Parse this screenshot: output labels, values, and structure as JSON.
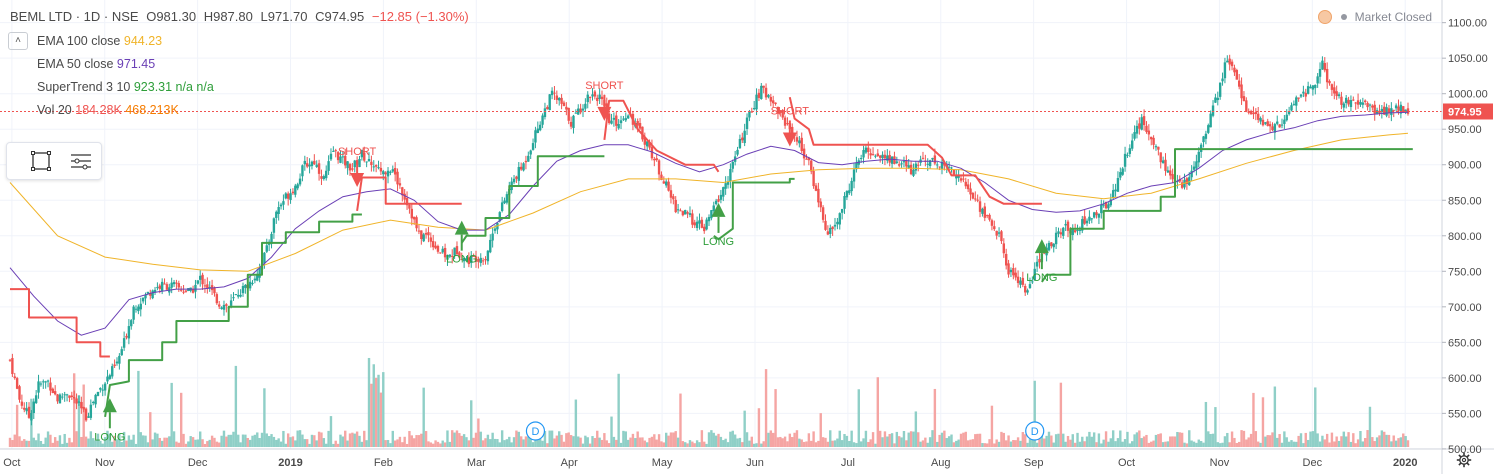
{
  "header": {
    "symbol": "BEML LTD · 1D · NSE",
    "open": "O981.30",
    "high": "H987.80",
    "low": "L971.70",
    "close": "C974.95",
    "change": "−12.85 (−1.30%)"
  },
  "indicators": [
    {
      "name": "EMA 100 close",
      "value": "944.23",
      "color": "#f0b429"
    },
    {
      "name": "EMA 50 close",
      "value": "971.45",
      "color": "#6a3fb5"
    },
    {
      "name": "SuperTrend 3 10",
      "value": "923.31 n/a n/a",
      "color": "#2e9e3a"
    },
    {
      "name": "Vol 20",
      "value": "184.28K",
      "value2": "468.213K",
      "color": "#ef5350",
      "color2": "#f57c00"
    }
  ],
  "market_status": "Market Closed",
  "price_tag": "974.95",
  "icons": [
    "collapse-chevron-icon",
    "rectangle-tool-icon",
    "format-lines-icon",
    "clock-icon",
    "settings-gear-icon"
  ],
  "colors": {
    "up": "#26a69a",
    "down": "#ef5350",
    "vol_up": "#8fcfc7",
    "vol_down": "#f5a5a3",
    "supertrend_up": "#43a047",
    "supertrend_down": "#ef5350"
  },
  "chart_data": {
    "type": "candlestick",
    "ylim": [
      490,
      1115
    ],
    "yticks": [
      "1100.00",
      "1050.00",
      "1000.00",
      "950.00",
      "900.00",
      "850.00",
      "800.00",
      "750.00",
      "700.00",
      "650.00",
      "600.00",
      "550.00",
      "500.00"
    ],
    "xticks": [
      "Oct",
      "Nov",
      "Dec",
      "2019",
      "Feb",
      "Mar",
      "Apr",
      "May",
      "Jun",
      "Jul",
      "Aug",
      "Sep",
      "Oct",
      "Nov",
      "Dec",
      "2020"
    ],
    "close_path": [
      [
        0,
        625
      ],
      [
        4,
        570
      ],
      [
        8,
        545
      ],
      [
        12,
        590
      ],
      [
        16,
        595
      ],
      [
        20,
        570
      ],
      [
        24,
        580
      ],
      [
        28,
        565
      ],
      [
        32,
        545
      ],
      [
        36,
        575
      ],
      [
        40,
        595
      ],
      [
        45,
        620
      ],
      [
        48,
        650
      ],
      [
        52,
        700
      ],
      [
        56,
        712
      ],
      [
        60,
        725
      ],
      [
        64,
        730
      ],
      [
        68,
        730
      ],
      [
        72,
        725
      ],
      [
        76,
        720
      ],
      [
        80,
        740
      ],
      [
        84,
        725
      ],
      [
        88,
        705
      ],
      [
        92,
        700
      ],
      [
        96,
        720
      ],
      [
        100,
        730
      ],
      [
        104,
        748
      ],
      [
        108,
        780
      ],
      [
        112,
        835
      ],
      [
        116,
        855
      ],
      [
        120,
        870
      ],
      [
        124,
        900
      ],
      [
        128,
        905
      ],
      [
        132,
        880
      ],
      [
        136,
        920
      ],
      [
        140,
        905
      ],
      [
        144,
        895
      ],
      [
        148,
        915
      ],
      [
        152,
        900
      ],
      [
        156,
        890
      ],
      [
        160,
        895
      ],
      [
        164,
        870
      ],
      [
        168,
        840
      ],
      [
        172,
        800
      ],
      [
        176,
        800
      ],
      [
        180,
        780
      ],
      [
        184,
        770
      ],
      [
        188,
        780
      ],
      [
        192,
        765
      ],
      [
        196,
        770
      ],
      [
        200,
        770
      ],
      [
        204,
        815
      ],
      [
        208,
        850
      ],
      [
        212,
        880
      ],
      [
        216,
        900
      ],
      [
        220,
        935
      ],
      [
        224,
        970
      ],
      [
        228,
        1000
      ],
      [
        232,
        985
      ],
      [
        236,
        960
      ],
      [
        240,
        980
      ],
      [
        244,
        1000
      ],
      [
        248,
        995
      ],
      [
        252,
        960
      ],
      [
        256,
        960
      ],
      [
        260,
        975
      ],
      [
        264,
        950
      ],
      [
        268,
        930
      ],
      [
        272,
        900
      ],
      [
        276,
        870
      ],
      [
        280,
        840
      ],
      [
        284,
        830
      ],
      [
        288,
        820
      ],
      [
        292,
        810
      ],
      [
        296,
        840
      ],
      [
        300,
        865
      ],
      [
        304,
        900
      ],
      [
        308,
        940
      ],
      [
        312,
        980
      ],
      [
        316,
        1005
      ],
      [
        320,
        995
      ],
      [
        324,
        970
      ],
      [
        328,
        950
      ],
      [
        332,
        930
      ],
      [
        336,
        900
      ],
      [
        340,
        850
      ],
      [
        344,
        800
      ],
      [
        348,
        820
      ],
      [
        352,
        860
      ],
      [
        356,
        900
      ],
      [
        360,
        920
      ],
      [
        364,
        915
      ],
      [
        368,
        910
      ],
      [
        372,
        905
      ],
      [
        376,
        900
      ],
      [
        380,
        890
      ],
      [
        384,
        910
      ],
      [
        388,
        905
      ],
      [
        392,
        900
      ],
      [
        396,
        895
      ],
      [
        400,
        880
      ],
      [
        404,
        860
      ],
      [
        408,
        840
      ],
      [
        412,
        820
      ],
      [
        416,
        800
      ],
      [
        420,
        750
      ],
      [
        424,
        740
      ],
      [
        428,
        720
      ],
      [
        432,
        760
      ],
      [
        436,
        780
      ],
      [
        440,
        800
      ],
      [
        444,
        810
      ],
      [
        448,
        810
      ],
      [
        452,
        820
      ],
      [
        456,
        830
      ],
      [
        460,
        840
      ],
      [
        464,
        860
      ],
      [
        468,
        900
      ],
      [
        472,
        940
      ],
      [
        476,
        960
      ],
      [
        480,
        940
      ],
      [
        484,
        910
      ],
      [
        488,
        880
      ],
      [
        492,
        870
      ],
      [
        496,
        880
      ],
      [
        500,
        920
      ],
      [
        504,
        960
      ],
      [
        508,
        1000
      ],
      [
        512,
        1050
      ],
      [
        516,
        1020
      ],
      [
        520,
        980
      ],
      [
        524,
        965
      ],
      [
        528,
        955
      ],
      [
        532,
        955
      ],
      [
        536,
        960
      ],
      [
        540,
        990
      ],
      [
        544,
        1000
      ],
      [
        548,
        1010
      ],
      [
        552,
        1040
      ],
      [
        556,
        1000
      ],
      [
        560,
        990
      ],
      [
        564,
        985
      ],
      [
        568,
        985
      ],
      [
        572,
        980
      ],
      [
        576,
        975
      ],
      [
        580,
        975
      ],
      [
        584,
        980
      ],
      [
        588,
        974.95
      ]
    ],
    "ema50_path": [
      [
        0,
        755
      ],
      [
        10,
        715
      ],
      [
        20,
        680
      ],
      [
        30,
        660
      ],
      [
        40,
        670
      ],
      [
        50,
        710
      ],
      [
        60,
        720
      ],
      [
        70,
        725
      ],
      [
        80,
        725
      ],
      [
        90,
        728
      ],
      [
        100,
        740
      ],
      [
        110,
        770
      ],
      [
        120,
        810
      ],
      [
        130,
        835
      ],
      [
        140,
        855
      ],
      [
        150,
        862
      ],
      [
        160,
        866
      ],
      [
        170,
        850
      ],
      [
        180,
        820
      ],
      [
        190,
        808
      ],
      [
        200,
        808
      ],
      [
        210,
        830
      ],
      [
        220,
        870
      ],
      [
        230,
        905
      ],
      [
        240,
        920
      ],
      [
        250,
        928
      ],
      [
        260,
        928
      ],
      [
        270,
        918
      ],
      [
        280,
        902
      ],
      [
        290,
        890
      ],
      [
        300,
        900
      ],
      [
        310,
        915
      ],
      [
        320,
        926
      ],
      [
        330,
        920
      ],
      [
        340,
        903
      ],
      [
        350,
        900
      ],
      [
        360,
        905
      ],
      [
        370,
        908
      ],
      [
        380,
        905
      ],
      [
        390,
        905
      ],
      [
        400,
        895
      ],
      [
        410,
        875
      ],
      [
        420,
        850
      ],
      [
        430,
        837
      ],
      [
        440,
        833
      ],
      [
        450,
        835
      ],
      [
        460,
        845
      ],
      [
        470,
        860
      ],
      [
        480,
        870
      ],
      [
        490,
        875
      ],
      [
        500,
        895
      ],
      [
        510,
        920
      ],
      [
        520,
        935
      ],
      [
        530,
        945
      ],
      [
        540,
        952
      ],
      [
        550,
        962
      ],
      [
        560,
        968
      ],
      [
        570,
        970
      ],
      [
        580,
        973
      ],
      [
        588,
        974
      ]
    ],
    "ema100_path": [
      [
        0,
        875
      ],
      [
        20,
        800
      ],
      [
        40,
        770
      ],
      [
        60,
        760
      ],
      [
        80,
        752
      ],
      [
        100,
        750
      ],
      [
        120,
        775
      ],
      [
        140,
        808
      ],
      [
        160,
        822
      ],
      [
        180,
        812
      ],
      [
        200,
        808
      ],
      [
        220,
        832
      ],
      [
        240,
        862
      ],
      [
        260,
        880
      ],
      [
        280,
        880
      ],
      [
        300,
        875
      ],
      [
        320,
        887
      ],
      [
        340,
        893
      ],
      [
        360,
        895
      ],
      [
        380,
        895
      ],
      [
        400,
        893
      ],
      [
        420,
        880
      ],
      [
        440,
        860
      ],
      [
        460,
        852
      ],
      [
        480,
        860
      ],
      [
        500,
        880
      ],
      [
        520,
        902
      ],
      [
        540,
        920
      ],
      [
        560,
        935
      ],
      [
        580,
        942
      ],
      [
        588,
        944.23
      ]
    ],
    "supertrend_segments": [
      {
        "dir": "down",
        "points": [
          [
            0,
            725
          ],
          [
            8,
            725
          ],
          [
            8,
            685
          ],
          [
            28,
            685
          ],
          [
            28,
            650
          ],
          [
            38,
            650
          ],
          [
            38,
            630
          ],
          [
            42,
            630
          ]
        ]
      },
      {
        "dir": "up",
        "points": [
          [
            40,
            545
          ],
          [
            42,
            590
          ],
          [
            50,
            595
          ],
          [
            50,
            625
          ],
          [
            64,
            625
          ],
          [
            64,
            650
          ],
          [
            70,
            650
          ],
          [
            70,
            680
          ],
          [
            92,
            680
          ],
          [
            92,
            700
          ],
          [
            100,
            700
          ],
          [
            100,
            745
          ],
          [
            106,
            745
          ],
          [
            106,
            790
          ],
          [
            116,
            790
          ],
          [
            116,
            805
          ],
          [
            130,
            805
          ],
          [
            130,
            820
          ],
          [
            144,
            820
          ],
          [
            144,
            830
          ],
          [
            148,
            830
          ]
        ]
      },
      {
        "dir": "down",
        "points": [
          [
            146,
            835
          ],
          [
            148,
            882
          ],
          [
            158,
            882
          ],
          [
            158,
            845
          ],
          [
            190,
            845
          ]
        ]
      },
      {
        "dir": "up",
        "points": [
          [
            190,
            790
          ],
          [
            192,
            800
          ],
          [
            200,
            800
          ],
          [
            200,
            825
          ],
          [
            210,
            825
          ],
          [
            210,
            870
          ],
          [
            222,
            870
          ],
          [
            222,
            912
          ],
          [
            250,
            912
          ]
        ]
      },
      {
        "dir": "down",
        "points": [
          [
            250,
            935
          ],
          [
            252,
            990
          ],
          [
            258,
            990
          ],
          [
            264,
            950
          ],
          [
            272,
            920
          ],
          [
            284,
            900
          ],
          [
            296,
            900
          ],
          [
            298,
            890
          ]
        ]
      },
      {
        "dir": "up",
        "points": [
          [
            296,
            800
          ],
          [
            298,
            795
          ],
          [
            304,
            810
          ],
          [
            304,
            875
          ],
          [
            328,
            875
          ],
          [
            328,
            880
          ],
          [
            330,
            880
          ]
        ]
      },
      {
        "dir": "down",
        "points": [
          [
            328,
            995
          ],
          [
            330,
            965
          ],
          [
            336,
            950
          ],
          [
            338,
            928
          ],
          [
            386,
            928
          ],
          [
            392,
            910
          ],
          [
            396,
            885
          ],
          [
            406,
            885
          ],
          [
            412,
            855
          ],
          [
            418,
            845
          ],
          [
            434,
            845
          ]
        ]
      },
      {
        "dir": "up",
        "points": [
          [
            434,
            735
          ],
          [
            436,
            745
          ],
          [
            446,
            745
          ],
          [
            446,
            810
          ],
          [
            460,
            810
          ],
          [
            460,
            835
          ],
          [
            484,
            835
          ],
          [
            484,
            855
          ],
          [
            490,
            855
          ],
          [
            490,
            922
          ],
          [
            590,
            922
          ]
        ]
      }
    ],
    "signals": [
      {
        "type": "LONG",
        "day": 42,
        "price": 560
      },
      {
        "type": "SHORT",
        "day": 146,
        "price": 880
      },
      {
        "type": "LONG",
        "day": 190,
        "price": 810
      },
      {
        "type": "SHORT",
        "day": 250,
        "price": 973
      },
      {
        "type": "LONG",
        "day": 298,
        "price": 835
      },
      {
        "type": "SHORT",
        "day": 328,
        "price": 937
      },
      {
        "type": "LONG",
        "day": 434,
        "price": 784
      }
    ],
    "dividend_markers": [
      {
        "label": "D",
        "day": 221
      },
      {
        "label": "D",
        "day": 431
      }
    ]
  }
}
